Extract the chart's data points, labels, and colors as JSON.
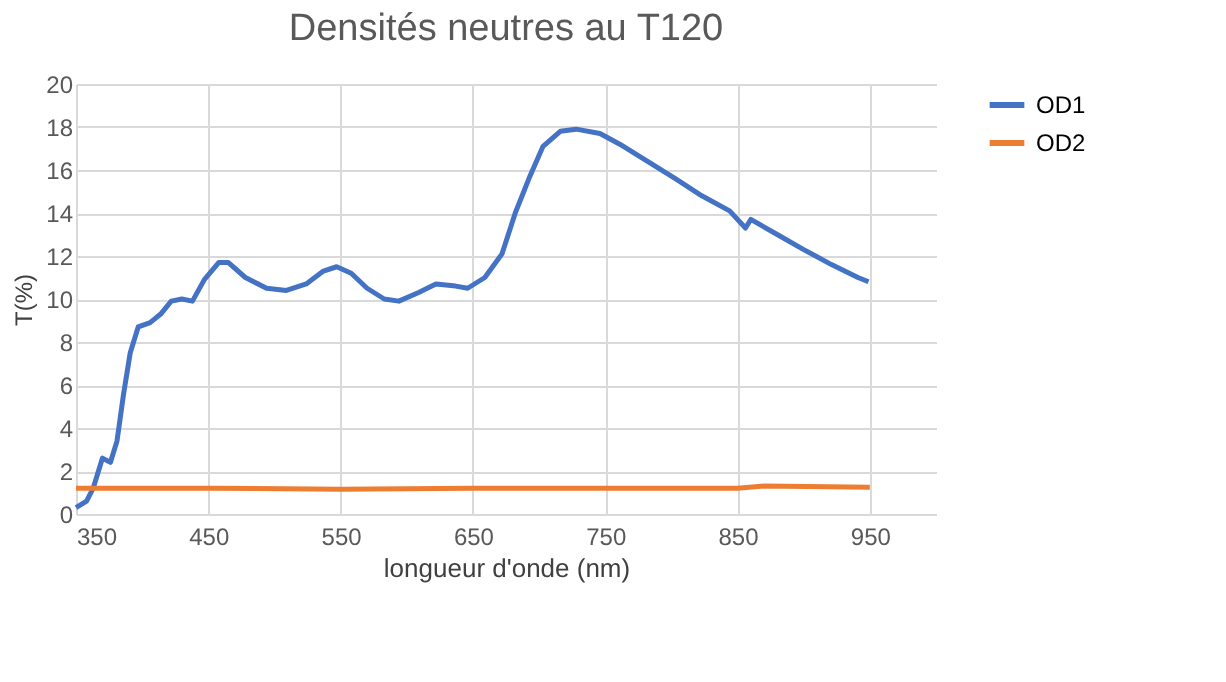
{
  "chart_data": {
    "type": "line",
    "title": "Densités neutres au T120",
    "xlabel": "longueur d'onde (nm)",
    "ylabel": "T(%)",
    "xlim": [
      350,
      1000
    ],
    "xticks": [
      350,
      450,
      550,
      650,
      750,
      850,
      950
    ],
    "ylim": [
      0,
      20
    ],
    "yticks": [
      0,
      2,
      4,
      6,
      8,
      10,
      12,
      14,
      16,
      18,
      20
    ],
    "grid": true,
    "legend": "right",
    "marker": "none",
    "line_style": "solid",
    "series": [
      {
        "name": "OD1",
        "color": "#4472c4",
        "x": [
          350,
          358,
          363,
          370,
          376,
          381,
          386,
          391,
          397,
          406,
          414,
          422,
          430,
          438,
          447,
          458,
          465,
          478,
          494,
          509,
          524,
          537,
          547,
          558,
          570,
          583,
          594,
          609,
          622,
          637,
          646,
          659,
          672,
          682,
          693,
          703,
          716,
          728,
          746,
          761,
          782,
          803,
          823,
          844,
          856,
          860,
          880,
          900,
          921,
          931,
          941,
          949
        ],
        "values": [
          0.3,
          0.6,
          1.2,
          2.6,
          2.4,
          3.4,
          5.6,
          7.5,
          8.7,
          8.9,
          9.3,
          9.9,
          10.0,
          9.9,
          10.9,
          11.7,
          11.7,
          11.0,
          10.5,
          10.4,
          10.7,
          11.3,
          11.5,
          11.2,
          10.5,
          10.0,
          9.9,
          10.3,
          10.7,
          10.6,
          10.5,
          11.0,
          12.1,
          14.0,
          15.7,
          17.1,
          17.8,
          17.9,
          17.7,
          17.2,
          16.4,
          15.6,
          14.8,
          14.1,
          13.3,
          13.7,
          13.0,
          12.3,
          11.6,
          11.3,
          11.0,
          10.8
        ]
      },
      {
        "name": "OD2",
        "color": "#ed7d31",
        "x": [
          350,
          450,
          550,
          650,
          750,
          850,
          870,
          950
        ],
        "values": [
          1.2,
          1.2,
          1.15,
          1.2,
          1.2,
          1.2,
          1.3,
          1.25
        ]
      }
    ]
  }
}
